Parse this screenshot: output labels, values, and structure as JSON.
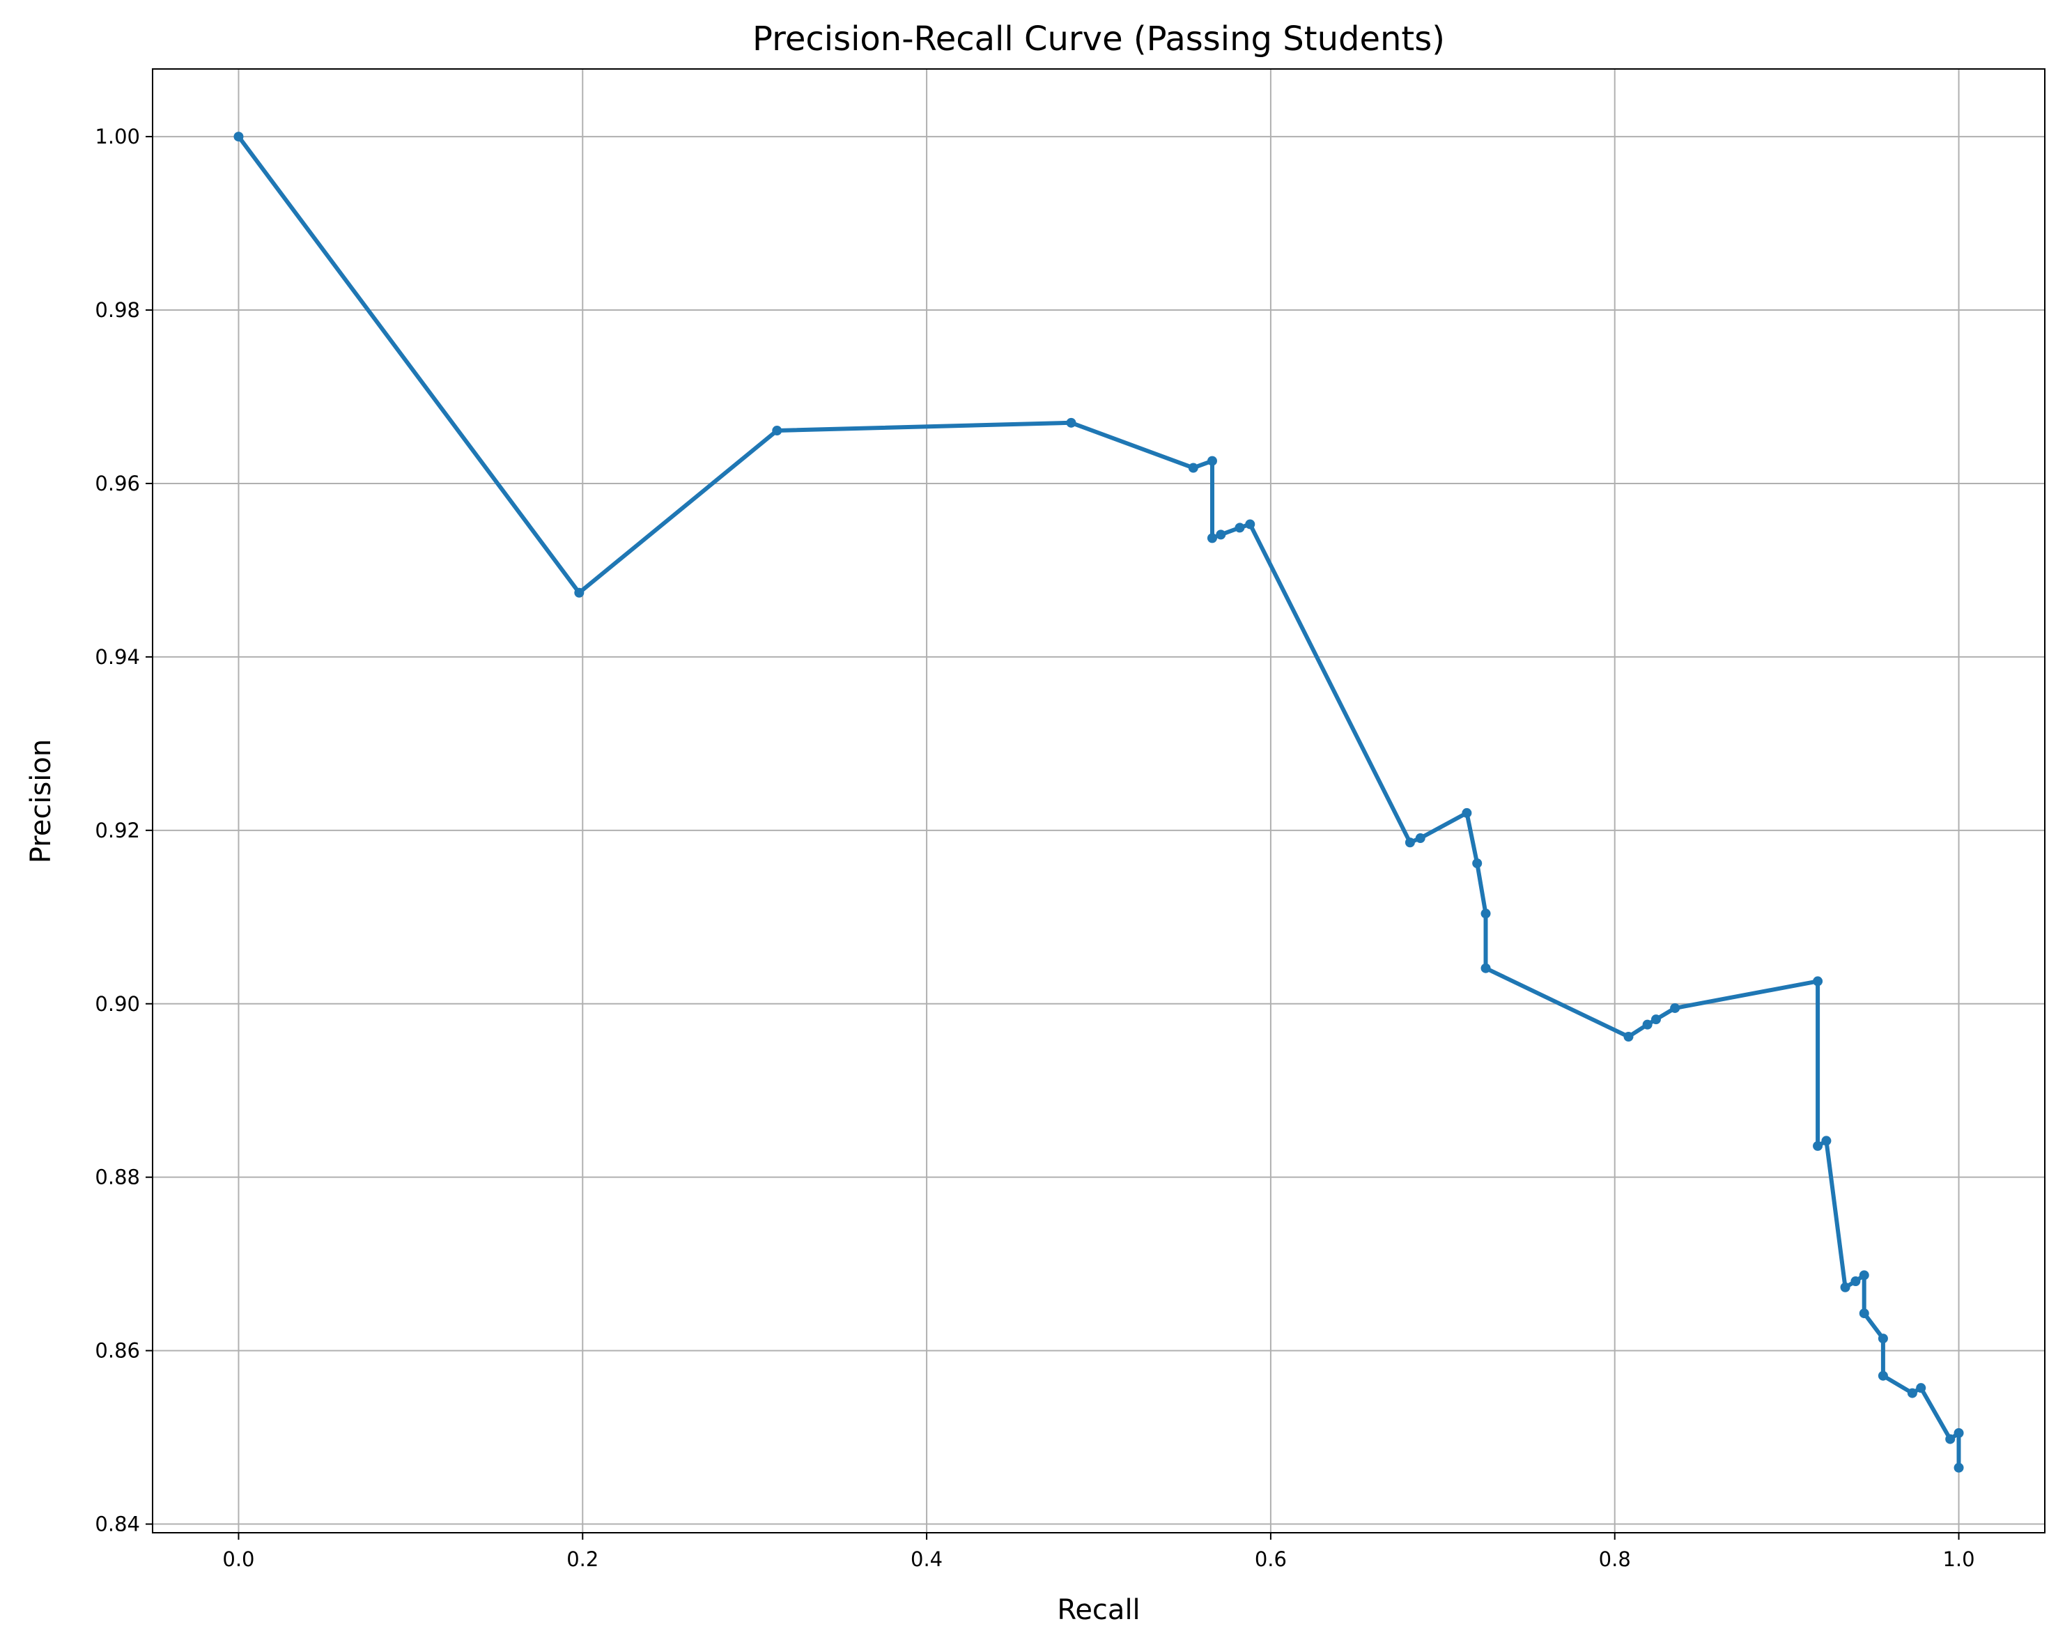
{
  "chart_data": {
    "type": "line",
    "title": "Precision-Recall Curve (Passing Students)",
    "xlabel": "Recall",
    "ylabel": "Precision",
    "xlim": [
      -0.05,
      1.05
    ],
    "ylim": [
      0.839,
      1.0078
    ],
    "xticks": [
      0.0,
      0.2,
      0.4,
      0.6,
      0.8,
      1.0
    ],
    "xtick_labels": [
      "0.0",
      "0.2",
      "0.4",
      "0.6",
      "0.8",
      "1.0"
    ],
    "yticks": [
      0.84,
      0.86,
      0.88,
      0.9,
      0.92,
      0.94,
      0.96,
      0.98,
      1.0
    ],
    "ytick_labels": [
      "0.84",
      "0.86",
      "0.88",
      "0.90",
      "0.92",
      "0.94",
      "0.96",
      "0.98",
      "1.00"
    ],
    "grid": true,
    "series": [
      {
        "color": "#1f77b4",
        "marker": "dot",
        "points": [
          [
            0.0,
            1.0
          ],
          [
            0.198,
            0.9474
          ],
          [
            0.313,
            0.9661
          ],
          [
            0.484,
            0.967
          ],
          [
            0.555,
            0.9618
          ],
          [
            0.566,
            0.9626
          ],
          [
            0.566,
            0.9537
          ],
          [
            0.571,
            0.9541
          ],
          [
            0.582,
            0.9549
          ],
          [
            0.588,
            0.9553
          ],
          [
            0.681,
            0.9186
          ],
          [
            0.687,
            0.9191
          ],
          [
            0.714,
            0.922
          ],
          [
            0.72,
            0.9162
          ],
          [
            0.725,
            0.9104
          ],
          [
            0.725,
            0.9041
          ],
          [
            0.808,
            0.8962
          ],
          [
            0.819,
            0.8976
          ],
          [
            0.824,
            0.8982
          ],
          [
            0.835,
            0.8995
          ],
          [
            0.918,
            0.9026
          ],
          [
            0.918,
            0.8836
          ],
          [
            0.923,
            0.8842
          ],
          [
            0.934,
            0.8673
          ],
          [
            0.94,
            0.868
          ],
          [
            0.945,
            0.8687
          ],
          [
            0.945,
            0.8643
          ],
          [
            0.956,
            0.8614
          ],
          [
            0.956,
            0.8571
          ],
          [
            0.973,
            0.8551
          ],
          [
            0.978,
            0.8557
          ],
          [
            0.995,
            0.8498
          ],
          [
            1.0,
            0.8505
          ],
          [
            1.0,
            0.8465
          ]
        ]
      }
    ]
  }
}
